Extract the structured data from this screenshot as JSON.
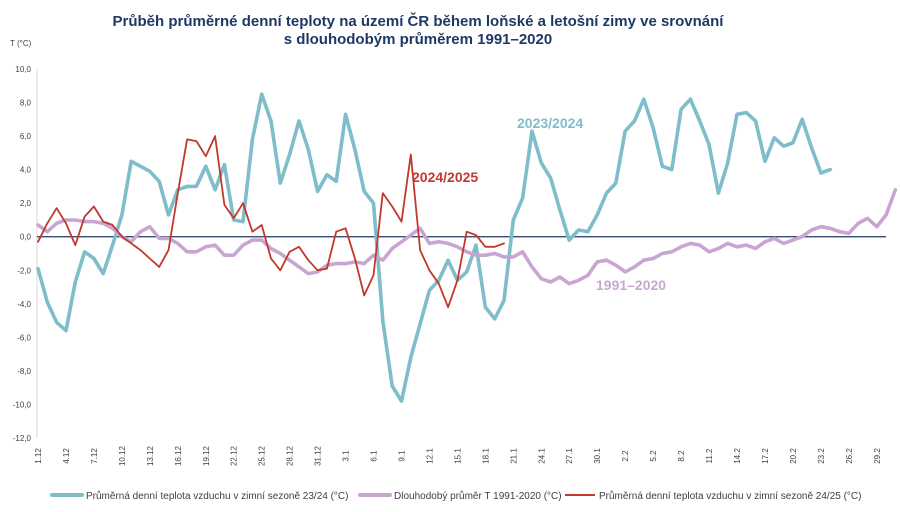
{
  "chart_data": {
    "type": "line",
    "title_line1": "Průběh průměrné denní teploty na území ČR během loňské a letošní zimy ve srovnání",
    "title_line2": "s dlouhodobým průměrem 1991–2020",
    "ylabel": "T (°C)",
    "ylim": [
      -12,
      10
    ],
    "yticks": [
      "10,0",
      "8,0",
      "6,0",
      "4,0",
      "2,0",
      "0,0",
      "-2,0",
      "-4,0",
      "-6,0",
      "-8,0",
      "-10,0",
      "-12,0"
    ],
    "x_ticks": [
      "1.12",
      "4.12",
      "7.12",
      "10.12",
      "13.12",
      "16.12",
      "19.12",
      "22.12",
      "25.12",
      "28.12",
      "31.12",
      "3.1",
      "6.1",
      "9.1",
      "12.1",
      "15.1",
      "18.1",
      "21.1",
      "24.1",
      "27.1",
      "30.1",
      "2.2",
      "5.2",
      "8.2",
      "11.2",
      "14.2",
      "17.2",
      "20.2",
      "23.2",
      "26.2",
      "29.2"
    ],
    "annotations": {
      "s2324": "2023/2024",
      "s2425": "2024/2025",
      "normal": "1991–2020"
    },
    "legend": [
      "Průměrná denní teplota vzduchu v zimní sezoně 23/24 (°C)",
      "Dlouhodobý průměr T 1991-2020 (°C)",
      "Průměrná denní teplota vzduchu v zimní sezoně 24/25 (°C)"
    ],
    "colors": {
      "s2324": "#7ebdc9",
      "normal": "#c9a6d2",
      "s2425": "#c0392b",
      "title": "#1f3864"
    },
    "series": [
      {
        "key": "s2324",
        "values": [
          -1.9,
          -3.9,
          -5.1,
          -5.6,
          -2.7,
          -0.9,
          -1.3,
          -2.2,
          -0.5,
          1.3,
          4.5,
          4.2,
          3.9,
          3.3,
          1.3,
          2.8,
          3.0,
          3.0,
          4.2,
          2.8,
          4.3,
          1.0,
          0.9,
          5.8,
          8.5,
          6.9,
          3.2,
          4.9,
          6.9,
          5.2,
          2.7,
          3.7,
          3.3,
          7.3,
          5.2,
          2.7,
          2.0,
          -5.0,
          -8.9,
          -9.8,
          -7.2,
          -5.2,
          -3.2,
          -2.6,
          -1.4,
          -2.6,
          -2.1,
          -0.5,
          -4.2,
          -4.9,
          -3.8,
          1.0,
          2.3,
          6.3,
          4.4,
          3.5,
          1.6,
          -0.2,
          0.4,
          0.3,
          1.3,
          2.6,
          3.2,
          6.3,
          6.9,
          8.2,
          6.5,
          4.2,
          4.0,
          7.6,
          8.2,
          6.9,
          5.5,
          2.6,
          4.4,
          7.3,
          7.4,
          6.9,
          4.5,
          5.9,
          5.4,
          5.6,
          7.0,
          5.3,
          3.8,
          4.0
        ]
      },
      {
        "key": "normal",
        "values": [
          0.7,
          0.3,
          0.8,
          1.0,
          1.0,
          0.9,
          0.9,
          0.8,
          0.5,
          0.0,
          -0.3,
          0.3,
          0.6,
          -0.1,
          -0.1,
          -0.4,
          -0.9,
          -0.9,
          -0.6,
          -0.5,
          -1.1,
          -1.1,
          -0.5,
          -0.2,
          -0.2,
          -0.7,
          -1.0,
          -1.4,
          -1.8,
          -2.2,
          -2.1,
          -1.7,
          -1.6,
          -1.6,
          -1.5,
          -1.6,
          -1.1,
          -1.4,
          -0.7,
          -0.3,
          0.1,
          0.5,
          -0.4,
          -0.3,
          -0.4,
          -0.6,
          -0.9,
          -1.1,
          -1.1,
          -1.0,
          -1.2,
          -1.2,
          -0.9,
          -1.8,
          -2.5,
          -2.7,
          -2.4,
          -2.8,
          -2.6,
          -2.3,
          -1.5,
          -1.4,
          -1.7,
          -2.1,
          -1.8,
          -1.4,
          -1.3,
          -1.0,
          -0.9,
          -0.6,
          -0.4,
          -0.5,
          -0.9,
          -0.7,
          -0.4,
          -0.6,
          -0.5,
          -0.7,
          -0.3,
          -0.1,
          -0.4,
          -0.2,
          0.0,
          0.4,
          0.6,
          0.5,
          0.3,
          0.2,
          0.8,
          1.1,
          0.6,
          1.3,
          2.8
        ]
      },
      {
        "key": "s2425",
        "values": [
          -0.3,
          0.8,
          1.7,
          0.8,
          -0.5,
          1.2,
          1.8,
          0.9,
          0.7,
          0.0,
          -0.4,
          -0.8,
          -1.3,
          -1.8,
          -0.8,
          2.6,
          5.8,
          5.7,
          4.8,
          6.0,
          1.9,
          1.1,
          2.0,
          0.3,
          0.7,
          -1.3,
          -2.0,
          -0.9,
          -0.6,
          -1.4,
          -2.0,
          -1.9,
          0.3,
          0.5,
          -1.3,
          -3.5,
          -2.3,
          2.6,
          1.8,
          0.9,
          4.9,
          -0.8,
          -2.0,
          -2.8,
          -4.2,
          -2.6,
          0.3,
          0.1,
          -0.6,
          -0.6,
          -0.4
        ]
      }
    ]
  }
}
